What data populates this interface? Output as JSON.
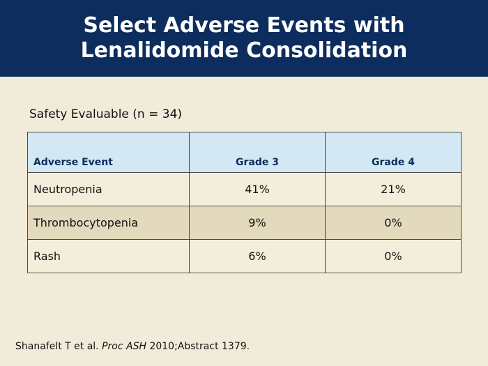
{
  "header": {
    "title_line1": "Select Adverse Events with",
    "title_line2": "Lenalidomide Consolidation"
  },
  "subtitle": "Safety Evaluable (n = 34)",
  "table": {
    "columns": [
      "Adverse Event",
      "Grade 3",
      "Grade 4"
    ],
    "rows": [
      [
        "Neutropenia",
        "41%",
        "21%"
      ],
      [
        "Thrombocytopenia",
        "9%",
        "0%"
      ],
      [
        "Rash",
        "6%",
        "0%"
      ]
    ]
  },
  "citation": {
    "authors": "Shanafelt T et al. ",
    "journal": "Proc ASH",
    "rest": " 2010;Abstract 1379."
  },
  "colors": {
    "header_bg": "#0d2d5e",
    "table_header_bg": "#d3e8f4",
    "row_alt_bg": "#e3d9bc",
    "page_bg": "#f1ecda"
  }
}
